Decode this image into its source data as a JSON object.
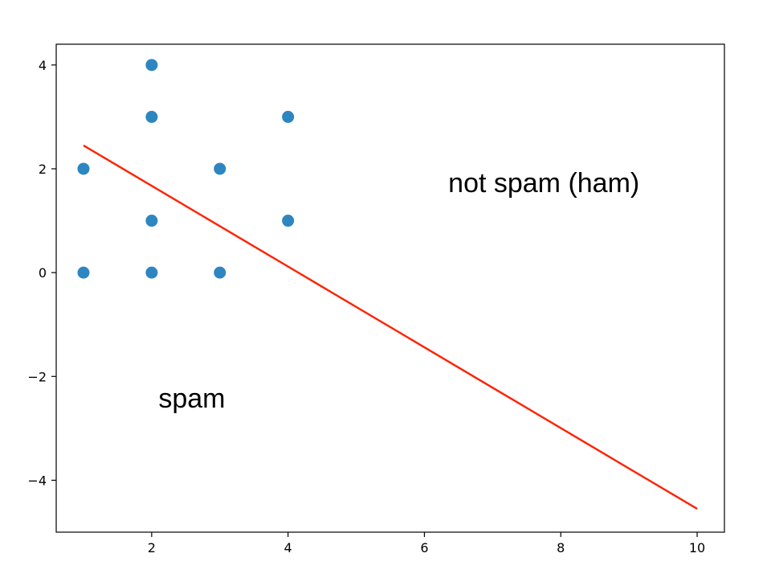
{
  "chart_data": {
    "type": "scatter",
    "title": "",
    "xlabel": "",
    "ylabel": "",
    "xlim": [
      0.6,
      10.4
    ],
    "ylim": [
      -5.0,
      4.4
    ],
    "x_ticks": [
      2,
      4,
      6,
      8,
      10
    ],
    "y_ticks": [
      -4,
      -2,
      0,
      2,
      4
    ],
    "x_tick_labels": [
      "2",
      "4",
      "6",
      "8",
      "10"
    ],
    "y_tick_labels": [
      "−4",
      "−2",
      "0",
      "2",
      "4"
    ],
    "grid": false,
    "series": [
      {
        "type": "scatter",
        "color": "#2e86c1",
        "points": [
          {
            "x": 1,
            "y": 0
          },
          {
            "x": 2,
            "y": 0
          },
          {
            "x": 3,
            "y": 0
          },
          {
            "x": 1,
            "y": 2
          },
          {
            "x": 2,
            "y": 1
          },
          {
            "x": 2,
            "y": 3
          },
          {
            "x": 2,
            "y": 4
          },
          {
            "x": 3,
            "y": 2
          },
          {
            "x": 4,
            "y": 1
          },
          {
            "x": 4,
            "y": 3
          }
        ]
      },
      {
        "type": "line",
        "color": "#ff2200",
        "points": [
          {
            "x": 1.0,
            "y": 2.45
          },
          {
            "x": 10.0,
            "y": 4.55,
            "y_neg": true
          }
        ]
      }
    ],
    "annotations": [
      {
        "text": "not spam (ham)",
        "x": 6.35,
        "y": 1.55
      },
      {
        "text": "spam",
        "x": 2.1,
        "y": -2.6
      }
    ]
  }
}
